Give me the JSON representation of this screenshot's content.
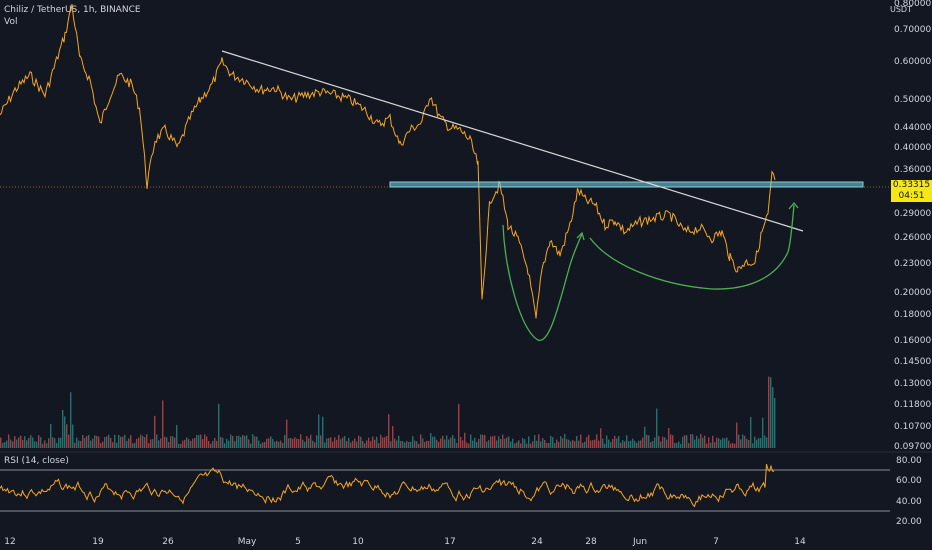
{
  "header": {
    "symbol": "Chiliz / TetherUS, 1h, BINANCE",
    "vol_label": "Vol",
    "currency": "USDT"
  },
  "rsi": {
    "label": "RSI (14, close)",
    "ticks": [
      "80.00",
      "60.00",
      "40.00",
      "20.00"
    ]
  },
  "price_axis": {
    "ticks": [
      "0.80000",
      "0.70000",
      "0.60000",
      "0.50000",
      "0.44000",
      "0.40000",
      "0.36000",
      "0.29000",
      "0.26000",
      "0.23000",
      "0.20000",
      "0.18000",
      "0.16000",
      "0.14500",
      "0.13000",
      "0.11800",
      "0.10700",
      "0.09700"
    ]
  },
  "current_price": {
    "value": "0.33315",
    "countdown": "04:51"
  },
  "time_axis": {
    "labels": [
      "12",
      "19",
      "26",
      "May",
      "5",
      "10",
      "17",
      "24",
      "28",
      "Jun",
      "7",
      "14"
    ]
  },
  "colors": {
    "background": "#131722",
    "price_line": "#f5a623",
    "trendline": "#d9d9d9",
    "resistance_zone": "#7fd3e0",
    "curve": "#4caf50",
    "vol_up": "#26a69a",
    "vol_down": "#ef5350",
    "rsi_line": "#f5a623",
    "price_tag": "#f5e616"
  },
  "chart_data": {
    "type": "line",
    "title": "Chiliz / TetherUS, 1h, BINANCE",
    "series": [
      {
        "name": "Chiliz / TetherUS",
        "x": [
          "12",
          "19",
          "26",
          "May",
          "5",
          "10",
          "17",
          "24",
          "28",
          "Jun",
          "7",
          "14"
        ],
        "values": [
          0.49,
          0.58,
          0.42,
          0.58,
          0.52,
          0.5,
          0.45,
          0.19,
          0.33,
          0.28,
          0.24,
          0.335
        ]
      }
    ],
    "ylim": [
      0.097,
      0.8
    ],
    "log_scale": true,
    "grid": false
  }
}
